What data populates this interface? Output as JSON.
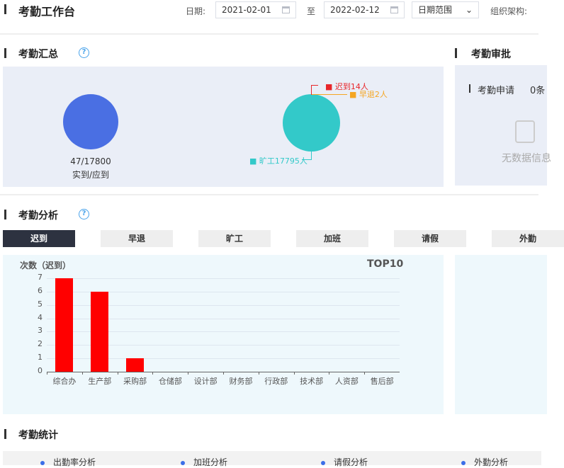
{
  "header": {
    "title": "考勤工作台",
    "date_label": "日期:",
    "start_date": "2021-02-01",
    "to_label": "至",
    "end_date": "2022-02-12",
    "range_select": "日期范围",
    "org_label": "组织架构:"
  },
  "summary": {
    "title": "考勤汇总",
    "help_icon": "?",
    "ratio": "47/17800",
    "ratio_label": "实到/应到",
    "pie": [
      {
        "label": "迟到14人",
        "value": 14,
        "color": "#e8262b"
      },
      {
        "label": "早退2人",
        "value": 2,
        "color": "#f5a623"
      },
      {
        "label": "旷工17795人",
        "value": 17795,
        "color": "#33c9c9"
      }
    ]
  },
  "approval": {
    "title": "考勤审批",
    "apply_label": "考勤申请",
    "apply_count": "0条",
    "empty_text": "无数据信息"
  },
  "analysis": {
    "title": "考勤分析",
    "help_icon": "?",
    "tabs": [
      "迟到",
      "早退",
      "旷工",
      "加班",
      "请假",
      "外勤"
    ],
    "active_tab": 0
  },
  "chart_data": {
    "type": "bar",
    "ylabel": "次数（迟到）",
    "title": "TOP10",
    "categories": [
      "综合办",
      "生产部",
      "采购部",
      "仓储部",
      "设计部",
      "财务部",
      "行政部",
      "技术部",
      "人资部",
      "售后部"
    ],
    "values": [
      7,
      6,
      1,
      0,
      0,
      0,
      0,
      0,
      0,
      0
    ],
    "ylim": [
      0,
      7
    ],
    "yticks": [
      0,
      1,
      2,
      3,
      4,
      5,
      6,
      7
    ],
    "grid": true,
    "color": "#ff0000"
  },
  "statistics": {
    "title": "考勤统计",
    "items": [
      "出勤率分析",
      "加班分析",
      "请假分析",
      "外勤分析"
    ]
  }
}
